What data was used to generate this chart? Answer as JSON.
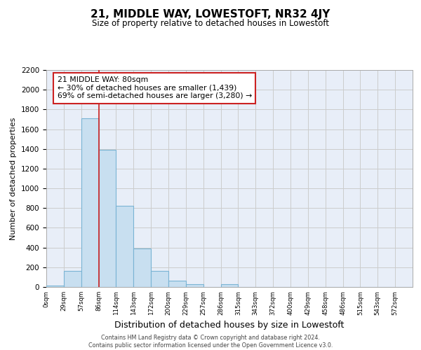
{
  "title": "21, MIDDLE WAY, LOWESTOFT, NR32 4JY",
  "subtitle": "Size of property relative to detached houses in Lowestoft",
  "xlabel": "Distribution of detached houses by size in Lowestoft",
  "ylabel": "Number of detached properties",
  "bar_labels": [
    "0sqm",
    "29sqm",
    "57sqm",
    "86sqm",
    "114sqm",
    "143sqm",
    "172sqm",
    "200sqm",
    "229sqm",
    "257sqm",
    "286sqm",
    "315sqm",
    "343sqm",
    "372sqm",
    "400sqm",
    "429sqm",
    "458sqm",
    "486sqm",
    "515sqm",
    "543sqm",
    "572sqm"
  ],
  "bar_values": [
    15,
    160,
    1710,
    1390,
    820,
    390,
    165,
    65,
    30,
    0,
    30,
    0,
    0,
    0,
    0,
    0,
    0,
    0,
    0,
    0,
    0
  ],
  "bar_color": "#c8dff0",
  "bar_edge_color": "#7ab4d4",
  "vertical_line_x": 3,
  "vertical_line_color": "#cc2222",
  "annotation_title": "21 MIDDLE WAY: 80sqm",
  "annotation_line1": "← 30% of detached houses are smaller (1,439)",
  "annotation_line2": "69% of semi-detached houses are larger (3,280) →",
  "annotation_box_color": "white",
  "annotation_box_edge_color": "#cc2222",
  "ylim": [
    0,
    2200
  ],
  "yticks": [
    0,
    200,
    400,
    600,
    800,
    1000,
    1200,
    1400,
    1600,
    1800,
    2000,
    2200
  ],
  "grid_color": "#cccccc",
  "background_color": "#e8eef8",
  "footer_line1": "Contains HM Land Registry data © Crown copyright and database right 2024.",
  "footer_line2": "Contains public sector information licensed under the Open Government Licence v3.0."
}
